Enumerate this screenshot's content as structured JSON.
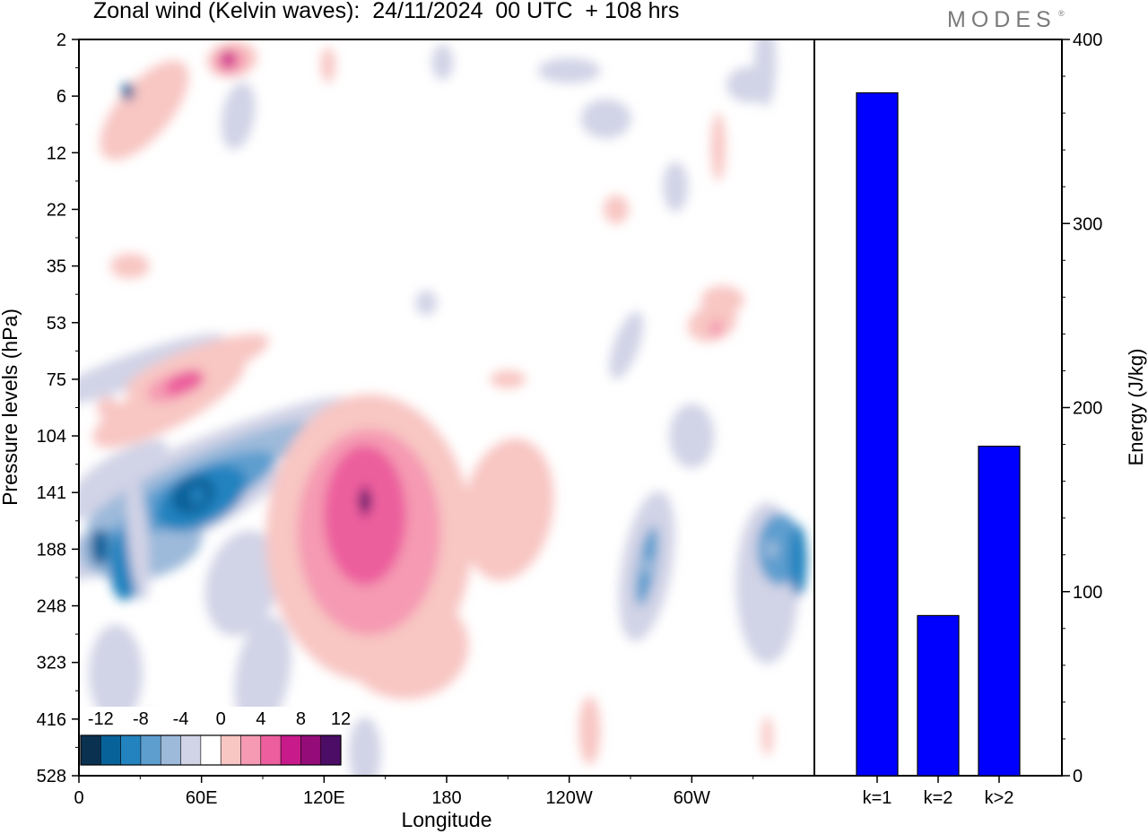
{
  "header": {
    "title": "Zonal wind (Kelvin waves):  24/11/2024  00 UTC  + 108 hrs",
    "brand": "MODES",
    "brand_mark": "®"
  },
  "chart_data": [
    {
      "type": "heatmap",
      "title": "Zonal wind (Kelvin waves):  24/11/2024  00 UTC  + 108 hrs",
      "xlabel": "Longitude",
      "ylabel": "Pressure levels (hPa)",
      "x_ticks": [
        "0",
        "60E",
        "120E",
        "180",
        "120W",
        "60W"
      ],
      "x_tick_degrees": [
        0,
        60,
        120,
        180,
        240,
        300
      ],
      "xlim": [
        0,
        360
      ],
      "y_ticks": [
        "2",
        "6",
        "12",
        "22",
        "35",
        "53",
        "75",
        "104",
        "141",
        "188",
        "248",
        "323",
        "416",
        "528"
      ],
      "colorbar": {
        "labels": [
          "-12",
          "-8",
          "-4",
          "0",
          "4",
          "8",
          "12"
        ],
        "levels": [
          -14,
          -12,
          -10,
          -8,
          -6,
          -4,
          -2,
          2,
          4,
          6,
          8,
          10,
          12,
          14
        ],
        "colors": [
          "#0b3150",
          "#08629a",
          "#2383bf",
          "#5d9ecf",
          "#9dbada",
          "#d1d3e6",
          "#ffffff",
          "#f8c6c3",
          "#f59ab2",
          "#ec5e9d",
          "#c81a8b",
          "#930c78",
          "#4b0d66"
        ]
      },
      "features": [
        {
          "x": 24,
          "lev": 0.92,
          "value": -12
        },
        {
          "x": 58,
          "lev": 8.05,
          "value": -10
        },
        {
          "x": 140,
          "lev": 8.15,
          "value": 12
        },
        {
          "x": 73,
          "lev": 0.35,
          "value": 8
        },
        {
          "x": 46,
          "lev": 6.15,
          "value": 6
        },
        {
          "x": 312,
          "lev": 5.1,
          "value": 4
        },
        {
          "x": 339,
          "lev": 9.0,
          "value": -6
        },
        {
          "x": 278,
          "lev": 9.3,
          "value": -6
        }
      ]
    },
    {
      "type": "bar",
      "categories": [
        "k=1",
        "k=2",
        "k>2"
      ],
      "values": [
        371,
        87,
        179
      ],
      "ylabel": "Energy (J/kg)",
      "ylim": [
        0,
        400
      ],
      "y_ticks": [
        "0",
        "100",
        "200",
        "300",
        "400"
      ],
      "bar_color": "#0000ff"
    }
  ]
}
